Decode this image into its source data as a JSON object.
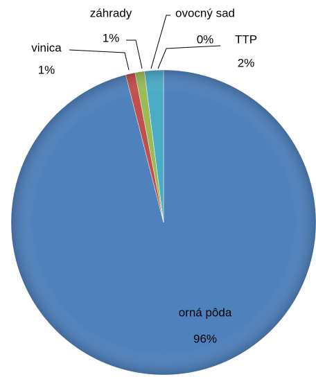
{
  "chart_data": {
    "type": "pie",
    "categories": [
      "orná pôda",
      "vinica",
      "záhrady",
      "ovocný sad",
      "TTP"
    ],
    "values": [
      96,
      1,
      1,
      0,
      2
    ],
    "value_labels": [
      "96%",
      "1%",
      "1%",
      "0%",
      "2%"
    ],
    "colors": [
      "#4f81bd",
      "#c0504d",
      "#9bbb59",
      "#8064a2",
      "#4bacc6"
    ]
  }
}
